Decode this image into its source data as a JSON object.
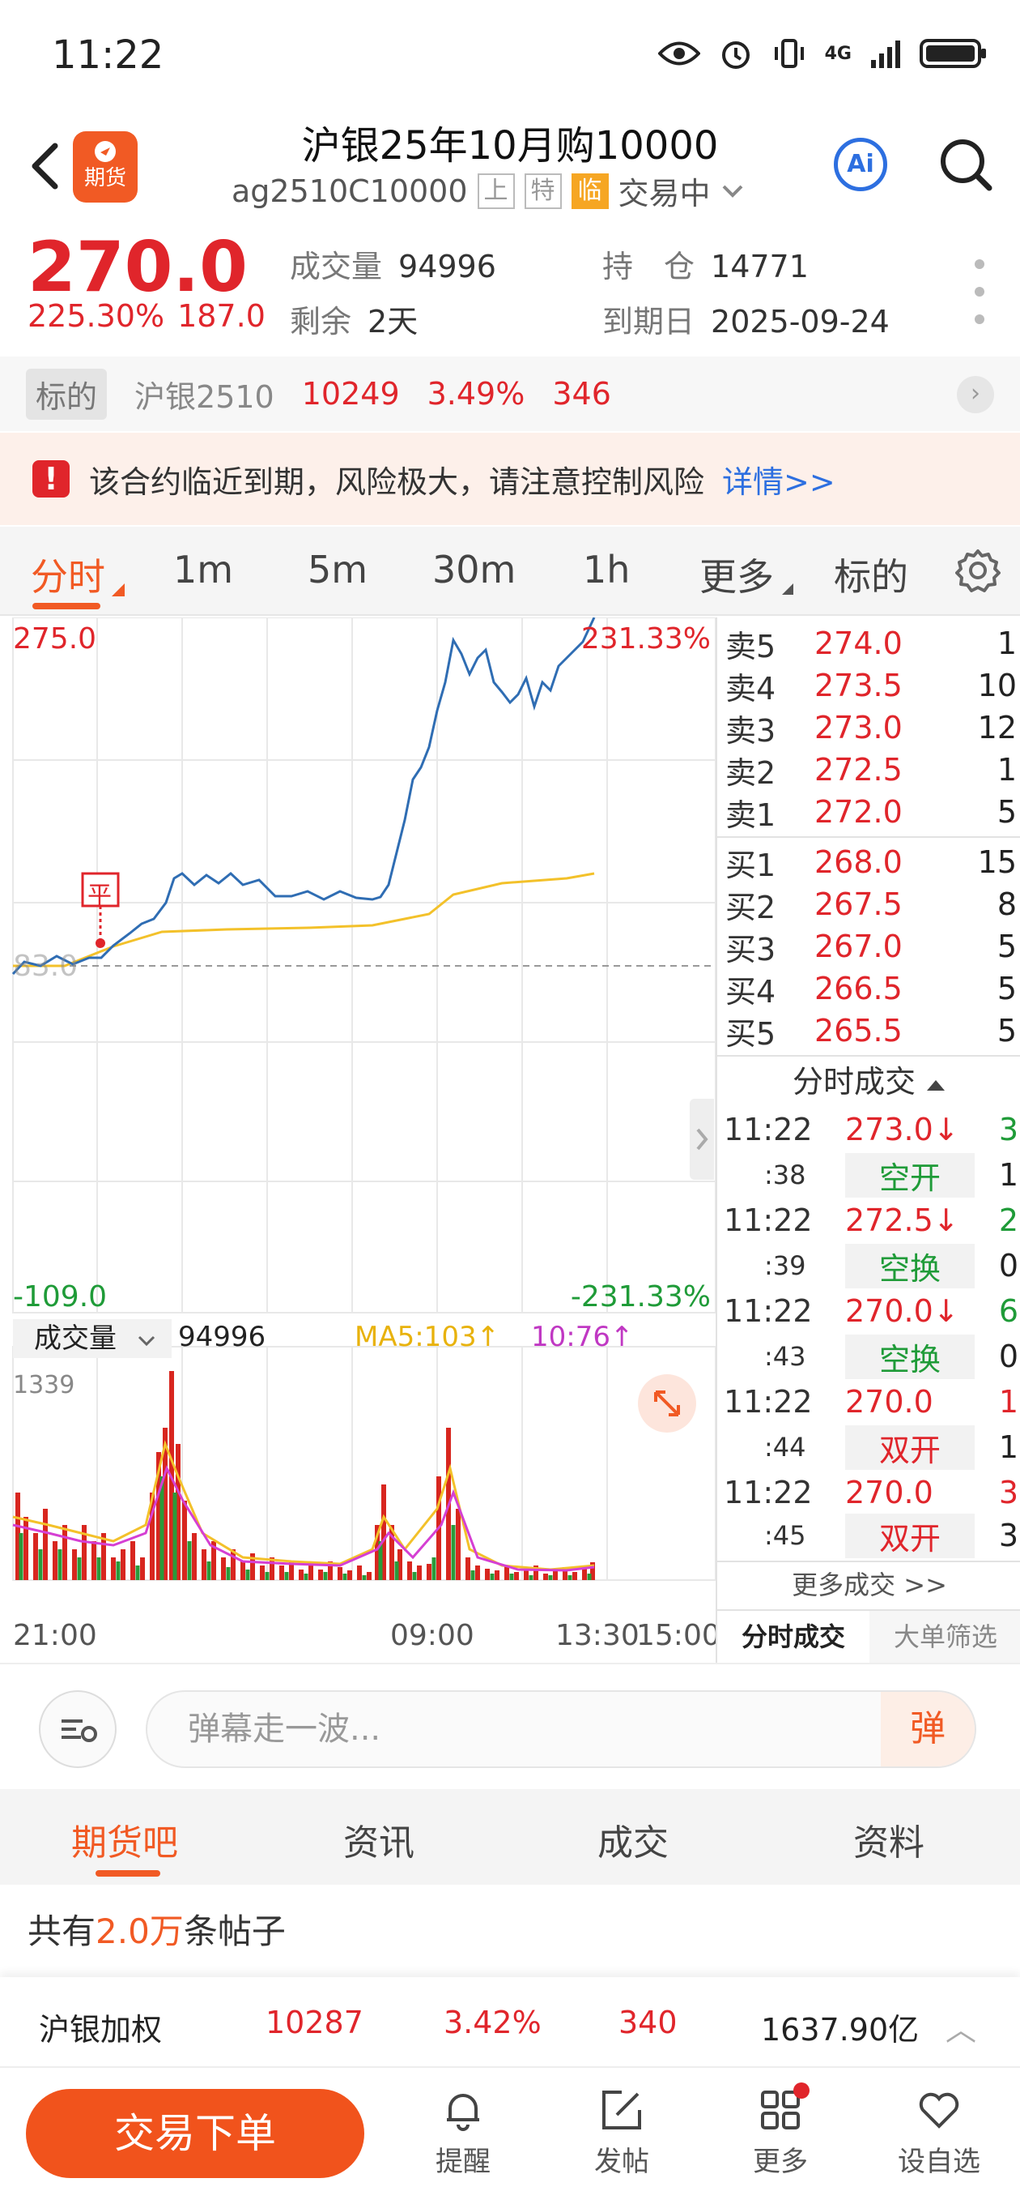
{
  "status": {
    "time": "11:22",
    "network": "4G"
  },
  "header": {
    "title": "沪银25年10月购10000",
    "code": "ag2510C10000",
    "tags": [
      "上",
      "特",
      "临"
    ],
    "trade_status": "交易中",
    "logo_text": "期货",
    "ai_label": "Ai"
  },
  "quote": {
    "price": "270.0",
    "change_pct": "225.30%",
    "change": "187.0",
    "volume_label": "成交量",
    "volume": "94996",
    "oi_label": "持　仓",
    "oi": "14771",
    "remain_label": "剩余",
    "remain": "2天",
    "expiry_label": "到期日",
    "expiry": "2025-09-24"
  },
  "underlying": {
    "label": "标的",
    "name": "沪银2510",
    "price": "10249",
    "pct": "3.49%",
    "change": "346",
    "arrow": "›"
  },
  "warning": {
    "text": "该合约临近到期，风险极大，请注意控制风险",
    "link": "详情>>",
    "icon": "!"
  },
  "tabs": [
    "分时",
    "1m",
    "5m",
    "30m",
    "1h",
    "更多",
    "标的"
  ],
  "chart": {
    "y_top": "275.0",
    "pct_top": "231.33%",
    "y_bottom": "-109.0",
    "pct_bottom": "-231.33%",
    "mid_label": "83.0",
    "marker": "平",
    "vol_selector": "成交量",
    "vol_value": "94996",
    "ma5": "MA5:103↑",
    "ma10": "10:76↑",
    "vol_max": "1339",
    "x_labels": [
      "21:00",
      "09:00",
      "13:30",
      "15:00"
    ]
  },
  "chart_data": {
    "type": "line",
    "x": [
      "21:00",
      "09:00",
      "13:30",
      "15:00"
    ],
    "series": [],
    "ylim": [
      -109.0,
      275.0
    ]
  },
  "book": {
    "asks": [
      {
        "label": "卖5",
        "price": "274.0",
        "vol": "1"
      },
      {
        "label": "卖4",
        "price": "273.5",
        "vol": "10"
      },
      {
        "label": "卖3",
        "price": "273.0",
        "vol": "12"
      },
      {
        "label": "卖2",
        "price": "272.5",
        "vol": "1"
      },
      {
        "label": "卖1",
        "price": "272.0",
        "vol": "5"
      }
    ],
    "bids": [
      {
        "label": "买1",
        "price": "268.0",
        "vol": "15"
      },
      {
        "label": "买2",
        "price": "267.5",
        "vol": "8"
      },
      {
        "label": "买3",
        "price": "267.0",
        "vol": "5"
      },
      {
        "label": "买4",
        "price": "266.5",
        "vol": "5"
      },
      {
        "label": "买5",
        "price": "265.5",
        "vol": "5"
      }
    ],
    "trades_title": "分时成交",
    "trades": [
      {
        "time": "11:22",
        "sec": ":38",
        "price": "273.0↓",
        "vol": "3",
        "kind": "空开",
        "kvol": "1"
      },
      {
        "time": "11:22",
        "sec": ":39",
        "price": "272.5↓",
        "vol": "2",
        "kind": "空换",
        "kvol": "0"
      },
      {
        "time": "11:22",
        "sec": ":43",
        "price": "270.0↓",
        "vol": "6",
        "kind": "空换",
        "kvol": "0"
      },
      {
        "time": "11:22",
        "sec": ":44",
        "price": "270.0",
        "vol": "1",
        "kind": "双开",
        "kvol": "1"
      },
      {
        "time": "11:22",
        "sec": ":45",
        "price": "270.0",
        "vol": "3",
        "kind": "双开",
        "kvol": "3"
      }
    ],
    "more_trades": "更多成交 >>",
    "foot_tabs": [
      "分时成交",
      "大单筛选"
    ]
  },
  "danmu": {
    "placeholder": "弹幕走一波...",
    "button": "弹"
  },
  "subtabs": [
    "期货吧",
    "资讯",
    "成交",
    "资料"
  ],
  "posts": {
    "prefix": "共有",
    "count": "2.0万",
    "suffix": "条帖子"
  },
  "ticker": {
    "name": "沪银加权",
    "price": "10287",
    "pct": "3.42%",
    "change": "340",
    "amount": "1637.90亿",
    "arrow": "︿"
  },
  "bottom": {
    "order": "交易下单",
    "nav": [
      "提醒",
      "发帖",
      "更多",
      "设自选"
    ]
  }
}
